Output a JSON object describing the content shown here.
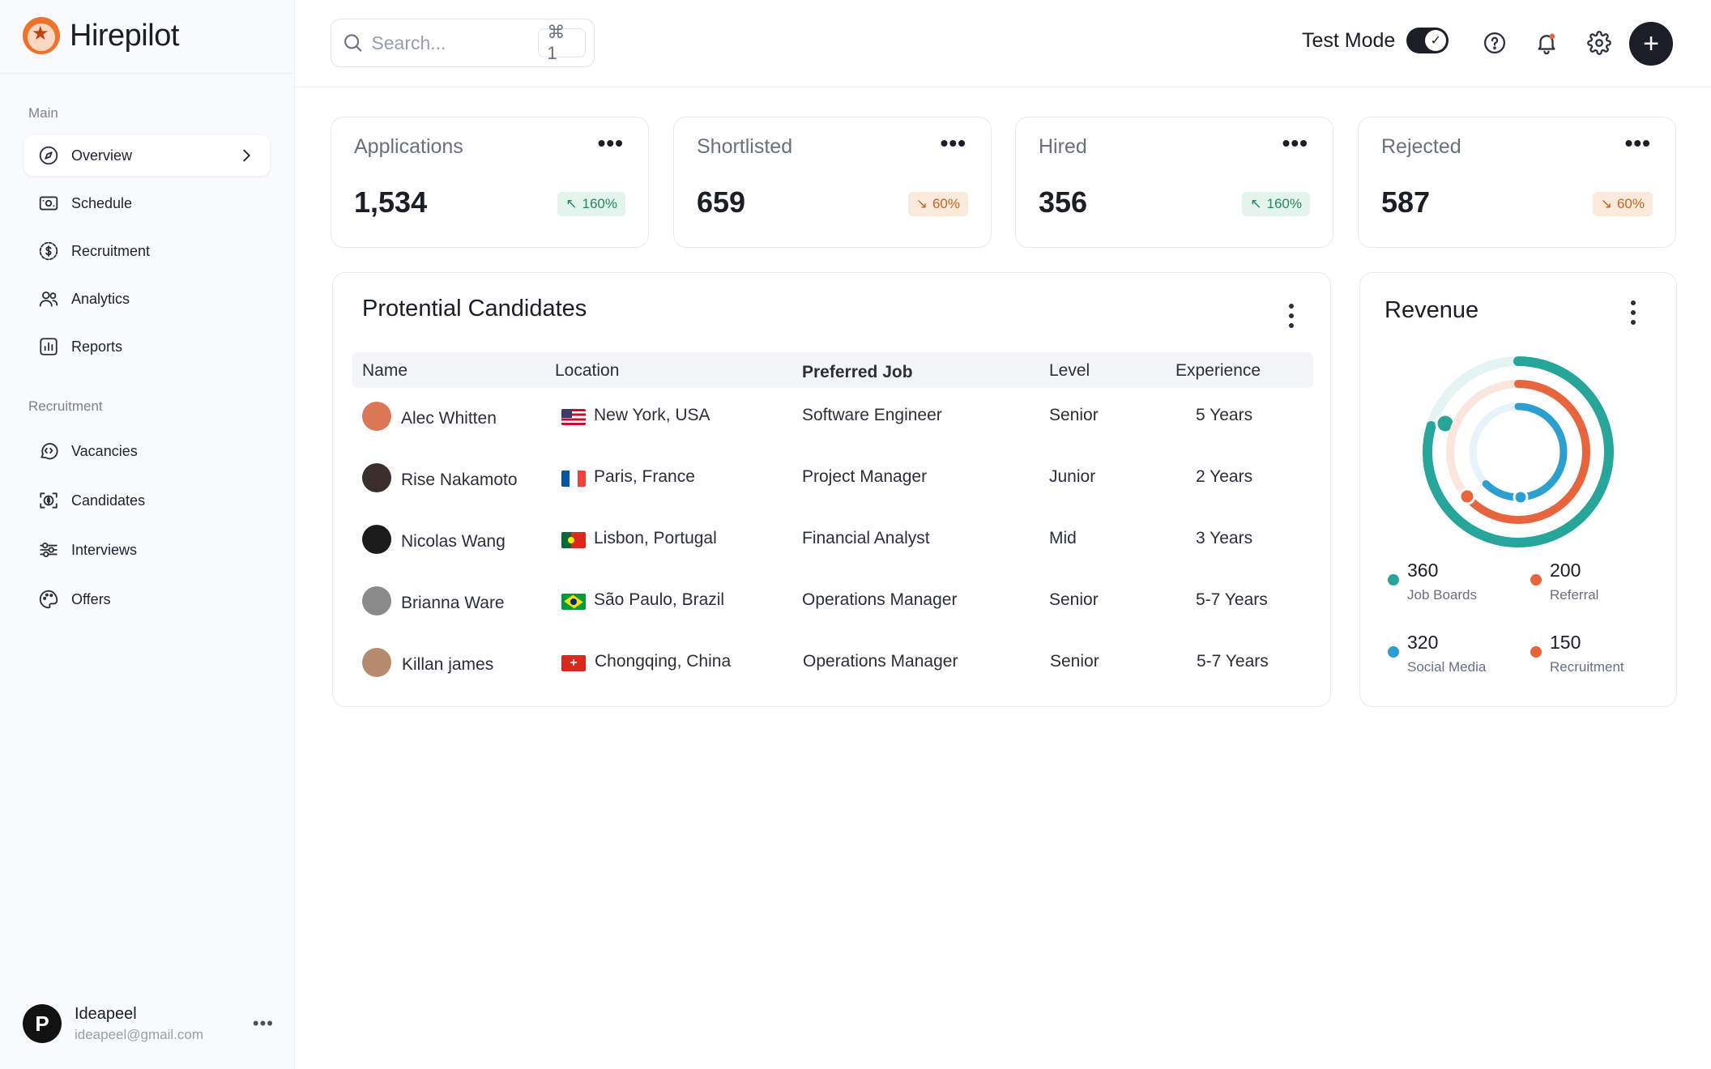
{
  "brand": {
    "name": "Hirepilot"
  },
  "sidebar": {
    "main_label": "Main",
    "main_items": [
      {
        "label": "Overview",
        "icon": "compass-icon",
        "active": true
      },
      {
        "label": "Schedule",
        "icon": "schedule-icon"
      },
      {
        "label": "Recruitment",
        "icon": "dollar-circle-icon"
      },
      {
        "label": "Analytics",
        "icon": "users-icon"
      },
      {
        "label": "Reports",
        "icon": "bar-chart-icon"
      }
    ],
    "recruitment_label": "Recruitment",
    "recruitment_items": [
      {
        "label": "Vacancies",
        "icon": "code-bubble-icon"
      },
      {
        "label": "Candidates",
        "icon": "candidate-scan-icon"
      },
      {
        "label": "Interviews",
        "icon": "sliders-icon"
      },
      {
        "label": "Offers",
        "icon": "palette-icon"
      }
    ]
  },
  "user": {
    "name": "Ideapeel",
    "email": "ideapeel@gmail.com",
    "avatar_letter": "P"
  },
  "topbar": {
    "search_placeholder": "Search...",
    "search_shortcut": "⌘ 1",
    "test_mode_label": "Test Mode",
    "test_mode_on": true
  },
  "stats": [
    {
      "title": "Applications",
      "value": "1,534",
      "change": "160%",
      "trend": "up"
    },
    {
      "title": "Shortlisted",
      "value": "659",
      "change": "60%",
      "trend": "down"
    },
    {
      "title": "Hired",
      "value": "356",
      "change": "160%",
      "trend": "up"
    },
    {
      "title": "Rejected",
      "value": "587",
      "change": "60%",
      "trend": "down"
    }
  ],
  "candidates": {
    "title": "Protential Candidates",
    "columns": [
      "Name",
      "Location",
      "Preferred Job",
      "Level",
      "Experience"
    ],
    "rows": [
      {
        "name": "Alec Whitten",
        "location": "New York, USA",
        "flag": "us",
        "job": "Software Engineer",
        "level": "Senior",
        "experience": "5 Years",
        "avatar_color": "#d97757"
      },
      {
        "name": "Rise Nakamoto",
        "location": "Paris, France",
        "flag": "fr",
        "job": "Project Manager",
        "level": "Junior",
        "experience": "2 Years",
        "avatar_color": "#3a2f2a"
      },
      {
        "name": "Nicolas Wang",
        "location": "Lisbon, Portugal",
        "flag": "pt",
        "job": "Financial Analyst",
        "level": "Mid",
        "experience": "3 Years",
        "avatar_color": "#1b1b1b"
      },
      {
        "name": "Brianna Ware",
        "location": "São Paulo, Brazil",
        "flag": "br",
        "job": "Operations Manager",
        "level": "Senior",
        "experience": "5-7 Years",
        "avatar_color": "#8a8a8a"
      },
      {
        "name": "Killan james",
        "location": "Chongqing, China",
        "flag": "ch",
        "job": "Operations Manager",
        "level": "Senior",
        "experience": "5-7 Years",
        "avatar_color": "#b58a6e"
      }
    ]
  },
  "revenue": {
    "title": "Revenue",
    "legend": [
      {
        "value": "360",
        "label": "Job Boards",
        "color": "#26a69a"
      },
      {
        "value": "200",
        "label": "Referral",
        "color": "#e8643c"
      },
      {
        "value": "320",
        "label": "Social Media",
        "color": "#2b9fd0"
      },
      {
        "value": "150",
        "label": "Recruitment",
        "color": "#e8643c"
      }
    ]
  }
}
